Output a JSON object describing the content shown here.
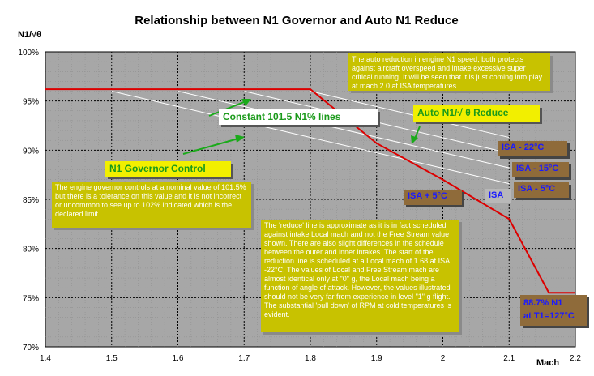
{
  "chart_data": {
    "type": "line",
    "title": "Relationship between N1 Governor and Auto N1 Reduce",
    "ylabel": "N1/√θ",
    "xlabel": "Mach",
    "xlim": [
      1.4,
      2.2
    ],
    "ylim": [
      70,
      100
    ],
    "x_ticks": [
      "1.4",
      "1.5",
      "1.6",
      "1.7",
      "1.8",
      "1.9",
      "2",
      "2.1",
      "2.2"
    ],
    "y_ticks": [
      "70%",
      "75%",
      "80%",
      "85%",
      "90%",
      "95%",
      "100%"
    ],
    "grid": true,
    "series": [
      {
        "color": "#dd0000",
        "x": [
          1.4,
          1.8,
          1.9,
          2.0,
          2.1,
          2.16,
          2.2
        ],
        "y": [
          96.2,
          96.2,
          90.7,
          87.0,
          83.0,
          75.5,
          75.5
        ]
      },
      {
        "color": "#ffffff",
        "x": [
          1.5,
          2.1
        ],
        "y": [
          96.0,
          86.6
        ]
      },
      {
        "color": "#ffffff",
        "x": [
          1.6,
          2.1
        ],
        "y": [
          96.0,
          88.2
        ]
      },
      {
        "color": "#ffffff",
        "x": [
          1.7,
          2.1
        ],
        "y": [
          96.0,
          89.7
        ]
      },
      {
        "color": "#ffffff",
        "x": [
          1.8,
          2.1
        ],
        "y": [
          96.0,
          91.3
        ]
      }
    ],
    "annotations": {
      "constant_lines": "Constant 101.5 N1% lines",
      "auto_reduce": "Auto N1/√ θ Reduce",
      "governor": "N1 Governor Control",
      "isa_minus_22": "ISA - 22°C",
      "isa_minus_15": "ISA - 15°C",
      "isa_minus_5": "ISA - 5°C",
      "isa": "ISA",
      "isa_plus_5": "ISA + 5°C",
      "n1_value_line1": "88.7% N1",
      "n1_value_line2": "at T1=127°C",
      "note_top": "The auto reduction in engine N1 speed, both protects against aircraft overspeed and intake excessive super critical running. It will be seen that it is just coming into play at mach 2.0 at ISA temperatures.",
      "note_left": "The engine governor controls at a nominal value of 101.5% but there is a tolerance on this value and it is not incorrect or uncommon to see up to 102% indicated which is the declared limit.",
      "note_center": "The 'reduce' line is approximate as it is in fact scheduled against intake Local mach and not the Free Stream value shown. There are also slight differences in the schedule between the outer and inner intakes. The start of the reduction line is scheduled at a Local mach of 1.68 at ISA -22°C. The values of Local and Free Stream mach are almost identical only at \"0\" g, the Local mach being a function of angle of attack. However, the values illustrated should not be very far from experience in level \"1\" g flight. The substantial 'pull down' of RPM at cold temperatures is evident."
    },
    "colors": {
      "plot_background": "#a7a7a7",
      "reduce_line": "#dd0000",
      "constant_lines": "#ffffff",
      "arrows": "#1aaa1a",
      "note_box": "#c8c200"
    }
  }
}
